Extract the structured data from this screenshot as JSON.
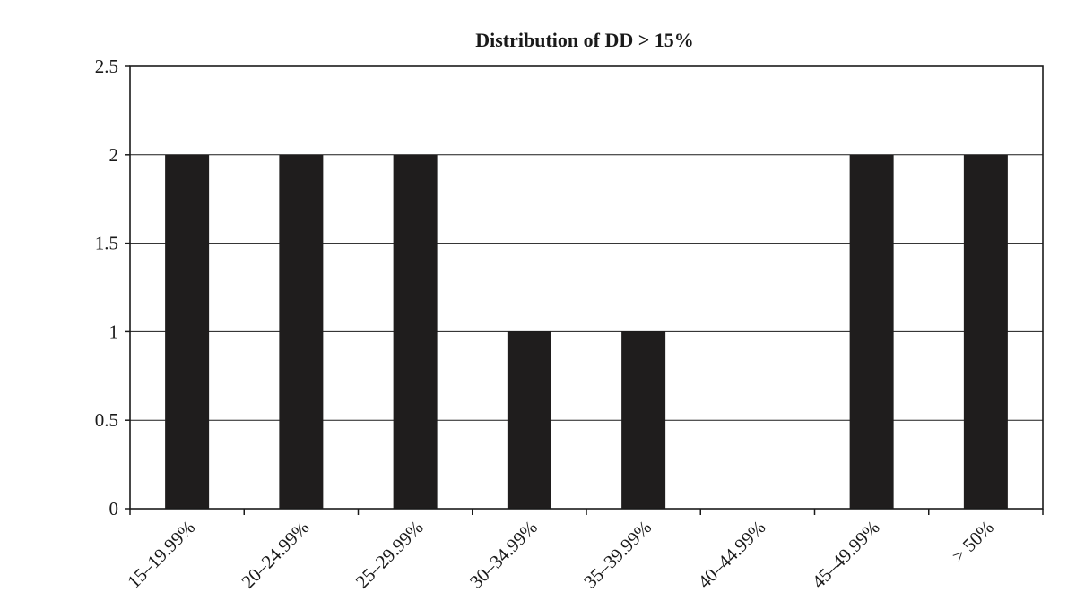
{
  "chart_data": {
    "type": "bar",
    "title": "Distribution of DD > 15%",
    "xlabel": "",
    "ylabel": "",
    "categories": [
      "15–19.99%",
      "20–24.99%",
      "25–29.99%",
      "30–34.99%",
      "35–39.99%",
      "40–44.99%",
      "45–49.99%",
      "> 50%"
    ],
    "values": [
      2,
      2,
      2,
      1,
      1,
      0,
      2,
      2
    ],
    "ylim": [
      0,
      2.5
    ],
    "yticks": [
      0,
      0.5,
      1,
      1.5,
      2,
      2.5
    ],
    "ytick_labels": [
      "0",
      "0.5",
      "1",
      "1.5",
      "2",
      "2.5"
    ],
    "grid": true,
    "legend": "none",
    "colors": {
      "bar": "#1f1d1d",
      "axis": "#1a1a1a",
      "grid": "#1a1a1a"
    }
  }
}
